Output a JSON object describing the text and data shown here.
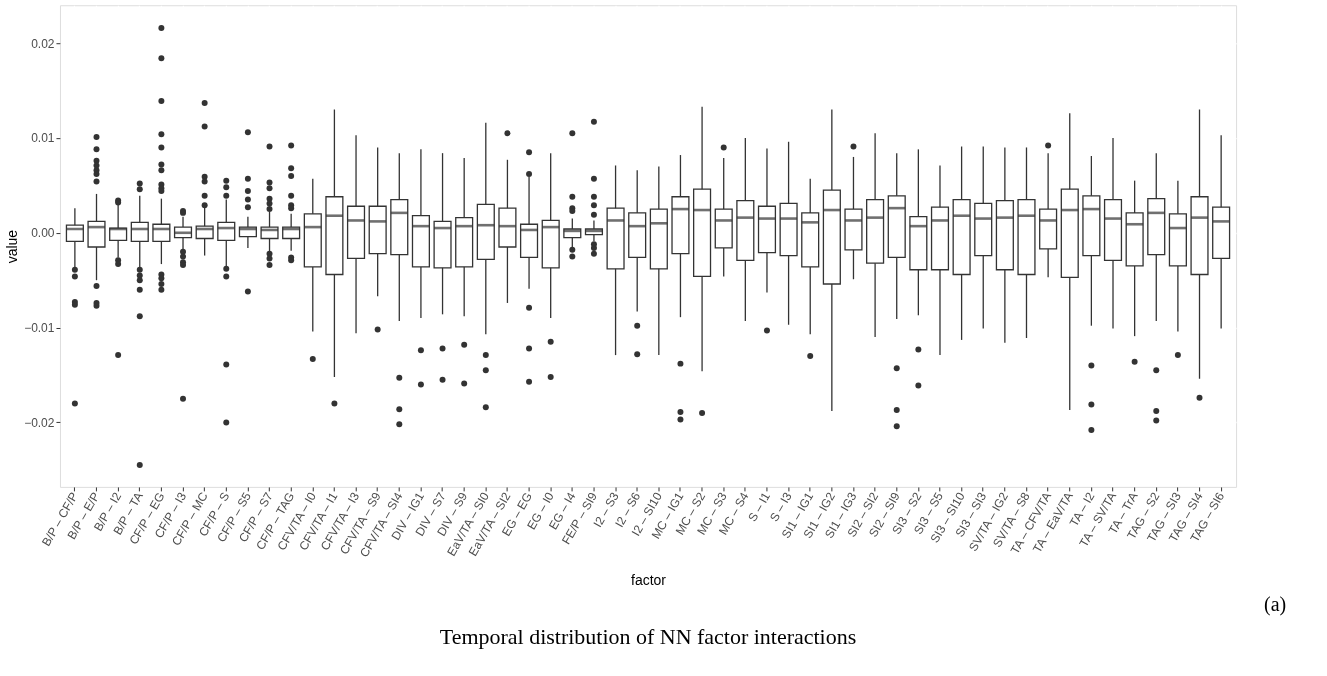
{
  "chart_data": {
    "type": "box",
    "title": "Temporal distribution of NN factor interactions",
    "xlabel": "factor",
    "ylabel": "value",
    "annotations": [
      "(a)"
    ],
    "categories": [
      "B/P – CF/P",
      "B/P – E/P",
      "B/P – I2",
      "B/P – TA",
      "CF/P – EG",
      "CF/P – I3",
      "CF/P – MC",
      "CF/P – S",
      "CF/P – S5",
      "CF/P – S7",
      "CF/P – TAG",
      "CFV/TA – I0",
      "CFV/TA – I1",
      "CFV/TA – I3",
      "CFV/TA – S9",
      "CFV/TA – SI4",
      "DIV – IG1",
      "DIV – S7",
      "DIV – S9",
      "EaV/TA – SI0",
      "EaV/TA – SI2",
      "EG – EG",
      "EG – I0",
      "EG – I4",
      "FE/P – SI9",
      "I2 – S3",
      "I2 – S6",
      "I2 – SI10",
      "MC – IG1",
      "MC – S2",
      "MC – S3",
      "MC – S4",
      "S – I1",
      "S – I3",
      "SI1 – IG1",
      "SI1 – IG2",
      "SI1 – IG3",
      "SI2 – SI2",
      "SI2 – SI9",
      "SI3 – S2",
      "SI3 – S5",
      "SI3 – SI10",
      "SI3 – SI3",
      "SV/TA – IG2",
      "SV/TA – S8",
      "TA – CFV/TA",
      "TA – EaV/TA",
      "TA – I2",
      "TA – SV/TA",
      "TA – TrA",
      "TAG – S2",
      "TAG – SI3",
      "TAG – SI4",
      "TAG – SI6"
    ],
    "boxes": [
      {
        "low": -0.0036,
        "q1": -0.0009,
        "median": 0.0004,
        "q3": 0.0008,
        "high": 0.0026,
        "outliers": [
          -0.0039,
          -0.0046,
          -0.0073,
          -0.0076,
          -0.018
        ]
      },
      {
        "low": -0.005,
        "q1": -0.0015,
        "median": 0.0006,
        "q3": 0.0012,
        "high": 0.0041,
        "outliers": [
          0.0101,
          0.0088,
          0.0076,
          0.0071,
          0.0066,
          0.0062,
          0.0054,
          -0.0056,
          -0.0074,
          -0.0077
        ]
      },
      {
        "low": -0.0026,
        "q1": -0.0008,
        "median": 0.0004,
        "q3": 0.0005,
        "high": 0.003,
        "outliers": [
          0.0034,
          0.0032,
          -0.0029,
          -0.0033,
          -0.0129
        ]
      },
      {
        "low": -0.0036,
        "q1": -0.0009,
        "median": 0.0004,
        "q3": 0.0011,
        "high": 0.0039,
        "outliers": [
          0.0052,
          0.0046,
          -0.0039,
          -0.0045,
          -0.005,
          -0.006,
          -0.0088,
          -0.0245
        ]
      },
      {
        "low": -0.0033,
        "q1": -0.0009,
        "median": 0.0004,
        "q3": 0.0009,
        "high": 0.0036,
        "outliers": [
          0.0216,
          0.0184,
          0.0139,
          0.0104,
          0.009,
          0.0072,
          0.0066,
          0.0051,
          0.0047,
          0.0044,
          -0.0044,
          -0.0048,
          -0.0054,
          -0.006
        ]
      },
      {
        "low": -0.0018,
        "q1": -0.0005,
        "median": 0.0,
        "q3": 0.0006,
        "high": 0.0017,
        "outliers": [
          0.0023,
          0.0021,
          -0.002,
          -0.0025,
          -0.0031,
          -0.0034,
          -0.0175
        ]
      },
      {
        "low": -0.0024,
        "q1": -0.0006,
        "median": 0.0004,
        "q3": 0.0007,
        "high": 0.0027,
        "outliers": [
          0.0137,
          0.0112,
          0.0059,
          0.0054,
          0.0039,
          0.0029
        ]
      },
      {
        "low": -0.0036,
        "q1": -0.0008,
        "median": 0.0005,
        "q3": 0.0011,
        "high": 0.0035,
        "outliers": [
          0.0055,
          0.0048,
          0.0039,
          -0.0038,
          -0.0046,
          -0.0139,
          -0.02
        ]
      },
      {
        "low": -0.0016,
        "q1": -0.0004,
        "median": 0.0004,
        "q3": 0.0006,
        "high": 0.0017,
        "outliers": [
          0.0106,
          0.0057,
          0.0044,
          0.0035,
          0.0027,
          -0.0062
        ]
      },
      {
        "low": -0.002,
        "q1": -0.0006,
        "median": 0.0003,
        "q3": 0.0006,
        "high": 0.0022,
        "outliers": [
          0.0091,
          0.0053,
          0.0047,
          0.0036,
          0.0031,
          0.0025,
          -0.0022,
          -0.0027,
          -0.0034
        ]
      },
      {
        "low": -0.0019,
        "q1": -0.0006,
        "median": 0.0004,
        "q3": 0.0006,
        "high": 0.002,
        "outliers": [
          0.0092,
          0.0068,
          0.006,
          0.0039,
          0.0029,
          0.0026,
          -0.0026,
          -0.0029
        ]
      },
      {
        "low": -0.0104,
        "q1": -0.0036,
        "median": 0.0006,
        "q3": 0.002,
        "high": 0.0057,
        "outliers": [
          -0.0133
        ]
      },
      {
        "low": -0.0152,
        "q1": -0.0044,
        "median": 0.0018,
        "q3": 0.0038,
        "high": 0.013,
        "outliers": [
          -0.018
        ]
      },
      {
        "low": -0.0106,
        "q1": -0.0027,
        "median": 0.0013,
        "q3": 0.0028,
        "high": 0.0103
      },
      {
        "low": -0.0067,
        "q1": -0.0022,
        "median": 0.0012,
        "q3": 0.0028,
        "high": 0.009,
        "outliers": [
          -0.0102
        ]
      },
      {
        "low": -0.0093,
        "q1": -0.0023,
        "median": 0.0021,
        "q3": 0.0035,
        "high": 0.0084,
        "outliers": [
          -0.0153,
          -0.0186,
          -0.0202
        ]
      },
      {
        "low": -0.009,
        "q1": -0.0036,
        "median": 0.0007,
        "q3": 0.0018,
        "high": 0.0088,
        "outliers": [
          -0.0124,
          -0.016
        ]
      },
      {
        "low": -0.0086,
        "q1": -0.0037,
        "median": 0.0005,
        "q3": 0.0012,
        "high": 0.0084,
        "outliers": [
          -0.0122,
          -0.0155
        ]
      },
      {
        "low": -0.0088,
        "q1": -0.0036,
        "median": 0.0007,
        "q3": 0.0016,
        "high": 0.0079,
        "outliers": [
          -0.0118,
          -0.0159
        ]
      },
      {
        "low": -0.0107,
        "q1": -0.0028,
        "median": 0.0008,
        "q3": 0.003,
        "high": 0.0116,
        "outliers": [
          -0.0129,
          -0.0145,
          -0.0184
        ]
      },
      {
        "low": -0.0074,
        "q1": -0.0015,
        "median": 0.0007,
        "q3": 0.0026,
        "high": 0.0077,
        "outliers": [
          0.0105
        ]
      },
      {
        "low": -0.0059,
        "q1": -0.0026,
        "median": 0.0003,
        "q3": 0.0009,
        "high": 0.0059,
        "outliers": [
          0.0085,
          0.0062,
          -0.0079,
          -0.0122,
          -0.0157
        ]
      },
      {
        "low": -0.009,
        "q1": -0.0037,
        "median": 0.0006,
        "q3": 0.0013,
        "high": 0.0084,
        "outliers": [
          -0.0115,
          -0.0152
        ]
      },
      {
        "low": -0.0015,
        "q1": -0.0005,
        "median": 0.0002,
        "q3": 0.0004,
        "high": 0.0015,
        "outliers": [
          0.0105,
          0.0038,
          0.0026,
          0.0023,
          -0.0018,
          -0.0025
        ]
      },
      {
        "low": -0.0009,
        "q1": -0.0002,
        "median": 0.0002,
        "q3": 0.0004,
        "high": 0.0013,
        "outliers": [
          0.0117,
          0.0057,
          0.0038,
          0.0029,
          0.0019,
          -0.0012,
          -0.0016,
          -0.0022
        ]
      },
      {
        "low": -0.0129,
        "q1": -0.0038,
        "median": 0.0013,
        "q3": 0.0026,
        "high": 0.0071
      },
      {
        "low": -0.0083,
        "q1": -0.0026,
        "median": 0.0007,
        "q3": 0.0021,
        "high": 0.0066,
        "outliers": [
          -0.0098,
          -0.0128
        ]
      },
      {
        "low": -0.0129,
        "q1": -0.0038,
        "median": 0.001,
        "q3": 0.0025,
        "high": 0.007
      },
      {
        "low": -0.0089,
        "q1": -0.0022,
        "median": 0.0025,
        "q3": 0.0038,
        "high": 0.0082,
        "outliers": [
          -0.0138,
          -0.0189,
          -0.0197
        ]
      },
      {
        "low": -0.0146,
        "q1": -0.0046,
        "median": 0.0024,
        "q3": 0.0046,
        "high": 0.0133,
        "outliers": [
          -0.019
        ]
      },
      {
        "low": -0.0046,
        "q1": -0.0016,
        "median": 0.0013,
        "q3": 0.0025,
        "high": 0.0079,
        "outliers": [
          0.009
        ]
      },
      {
        "low": -0.0093,
        "q1": -0.0029,
        "median": 0.0016,
        "q3": 0.0034,
        "high": 0.01
      },
      {
        "low": -0.0063,
        "q1": -0.0021,
        "median": 0.0015,
        "q3": 0.0028,
        "high": 0.0089,
        "outliers": [
          -0.0103
        ]
      },
      {
        "low": -0.0097,
        "q1": -0.0024,
        "median": 0.0015,
        "q3": 0.0031,
        "high": 0.0096
      },
      {
        "low": -0.0107,
        "q1": -0.0036,
        "median": 0.0011,
        "q3": 0.0021,
        "high": 0.0057,
        "outliers": [
          -0.013
        ]
      },
      {
        "low": -0.0188,
        "q1": -0.0054,
        "median": 0.0024,
        "q3": 0.0045,
        "high": 0.013
      },
      {
        "low": -0.0049,
        "q1": -0.0018,
        "median": 0.0013,
        "q3": 0.0025,
        "high": 0.008,
        "outliers": [
          0.0091
        ]
      },
      {
        "low": -0.011,
        "q1": -0.0032,
        "median": 0.0016,
        "q3": 0.0035,
        "high": 0.0105
      },
      {
        "low": -0.0091,
        "q1": -0.0026,
        "median": 0.0026,
        "q3": 0.0039,
        "high": 0.0084,
        "outliers": [
          -0.0143,
          -0.0187,
          -0.0204
        ]
      },
      {
        "low": -0.0087,
        "q1": -0.0039,
        "median": 0.0007,
        "q3": 0.0017,
        "high": 0.0088,
        "outliers": [
          -0.0123,
          -0.0161
        ]
      },
      {
        "low": -0.0129,
        "q1": -0.0039,
        "median": 0.0013,
        "q3": 0.0027,
        "high": 0.0071
      },
      {
        "low": -0.0113,
        "q1": -0.0044,
        "median": 0.0018,
        "q3": 0.0035,
        "high": 0.0091
      },
      {
        "low": -0.0101,
        "q1": -0.0024,
        "median": 0.0015,
        "q3": 0.0031,
        "high": 0.0091
      },
      {
        "low": -0.0116,
        "q1": -0.0039,
        "median": 0.0016,
        "q3": 0.0034,
        "high": 0.009
      },
      {
        "low": -0.0111,
        "q1": -0.0044,
        "median": 0.0018,
        "q3": 0.0035,
        "high": 0.009
      },
      {
        "low": -0.0047,
        "q1": -0.0017,
        "median": 0.0013,
        "q3": 0.0025,
        "high": 0.0084,
        "outliers": [
          0.0092
        ]
      },
      {
        "low": -0.0187,
        "q1": -0.0047,
        "median": 0.0024,
        "q3": 0.0046,
        "high": 0.0126
      },
      {
        "low": -0.0098,
        "q1": -0.0024,
        "median": 0.0025,
        "q3": 0.0039,
        "high": 0.0081,
        "outliers": [
          -0.014,
          -0.0181,
          -0.0208
        ]
      },
      {
        "low": -0.0101,
        "q1": -0.0029,
        "median": 0.0015,
        "q3": 0.0035,
        "high": 0.01
      },
      {
        "low": -0.0109,
        "q1": -0.0035,
        "median": 0.0009,
        "q3": 0.0021,
        "high": 0.0055,
        "outliers": [
          -0.0136
        ]
      },
      {
        "low": -0.0093,
        "q1": -0.0023,
        "median": 0.0021,
        "q3": 0.0036,
        "high": 0.0084,
        "outliers": [
          -0.0145,
          -0.0188,
          -0.0198
        ]
      },
      {
        "low": -0.0104,
        "q1": -0.0035,
        "median": 0.0005,
        "q3": 0.002,
        "high": 0.0055,
        "outliers": [
          -0.0129
        ]
      },
      {
        "low": -0.0154,
        "q1": -0.0044,
        "median": 0.0016,
        "q3": 0.0038,
        "high": 0.013,
        "outliers": [
          -0.0174
        ]
      },
      {
        "low": -0.0101,
        "q1": -0.0027,
        "median": 0.0012,
        "q3": 0.0027,
        "high": 0.0103
      }
    ],
    "ylim": [
      -0.0268,
      0.024
    ],
    "yticks": [
      {
        "value": -0.02,
        "label": "−0.02"
      },
      {
        "value": -0.01,
        "label": "−0.01"
      },
      {
        "value": 0,
        "label": "0.00"
      },
      0.01,
      0.02
    ],
    "grid": true
  }
}
